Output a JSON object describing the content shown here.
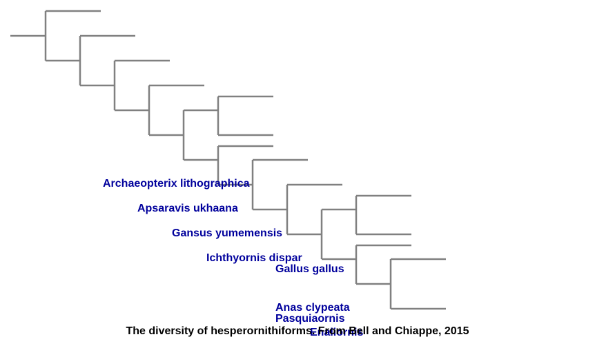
{
  "diagram": {
    "caption": "The diversity of hesperornithiforms. From Bell and Chiappe, 2015",
    "line_color": "#808080",
    "label_color": "#00009c",
    "taxa": [
      {
        "id": "archaeopterix",
        "label": "Archaeopterix lithographica"
      },
      {
        "id": "apsaravis",
        "label": "Apsaravis ukhaana"
      },
      {
        "id": "gansus",
        "label": "Gansus yumemensis"
      },
      {
        "id": "ichthyornis",
        "label": "Ichthyornis dispar"
      },
      {
        "id": "gallus",
        "label": "Gallus gallus"
      },
      {
        "id": "anas",
        "label": "Anas clypeata"
      },
      {
        "id": "pasquiaornis",
        "label": "Pasquiaornis"
      },
      {
        "id": "enaliornis",
        "label": "Enaliornis"
      }
    ]
  }
}
